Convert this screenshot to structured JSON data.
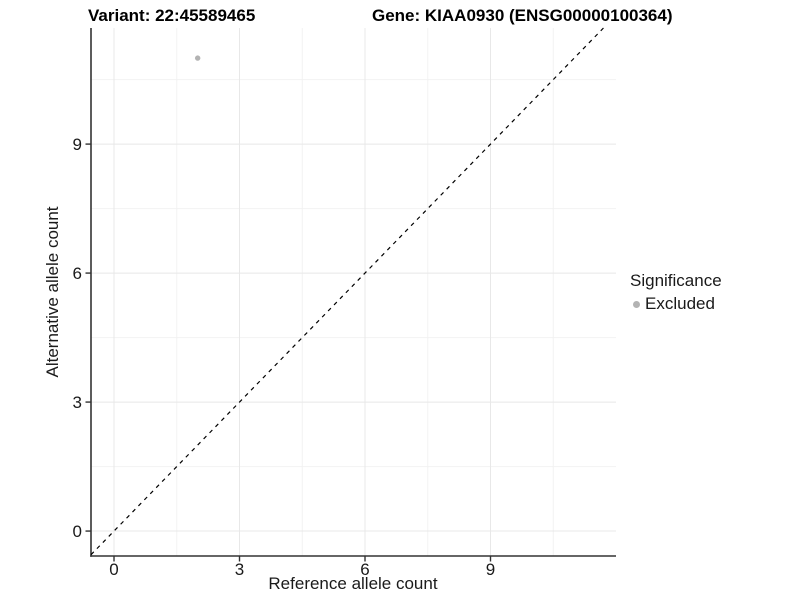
{
  "header": {
    "variant_title": "Variant: 22:45589465",
    "gene_title": "Gene: KIAA0930 (ENSG00000100364)"
  },
  "legend": {
    "title": "Significance",
    "items": [
      {
        "label": "Excluded",
        "color": "#b3b3b3"
      }
    ]
  },
  "colors": {
    "point": "#b3b3b3",
    "grid_major": "#e8e8e8",
    "grid_minor": "#f2f2f2",
    "axis": "#333333",
    "tick_text": "#1a1a1a",
    "diagonal": "#000000",
    "background": "#ffffff"
  },
  "chart_data": {
    "type": "scatter",
    "title": "Variant: 22:45589465  /  Gene: KIAA0930 (ENSG00000100364)",
    "xlabel": "Reference allele count",
    "ylabel": "Alternative allele count",
    "xlim": [
      -0.55,
      12.0
    ],
    "ylim": [
      -0.58,
      11.7
    ],
    "x_breaks": [
      0,
      3,
      6,
      9
    ],
    "y_breaks": [
      0,
      3,
      6,
      9
    ],
    "x_minor_breaks": [
      1.5,
      4.5,
      7.5,
      10.5
    ],
    "y_minor_breaks": [
      1.5,
      4.5,
      7.5,
      10.5
    ],
    "grid": true,
    "legend_position": "right",
    "series": [
      {
        "name": "Excluded",
        "color": "#b3b3b3",
        "points": [
          {
            "x": 2,
            "y": 11
          }
        ]
      }
    ],
    "reference_line": {
      "slope": 1,
      "intercept": 0,
      "style": "dashed"
    }
  }
}
